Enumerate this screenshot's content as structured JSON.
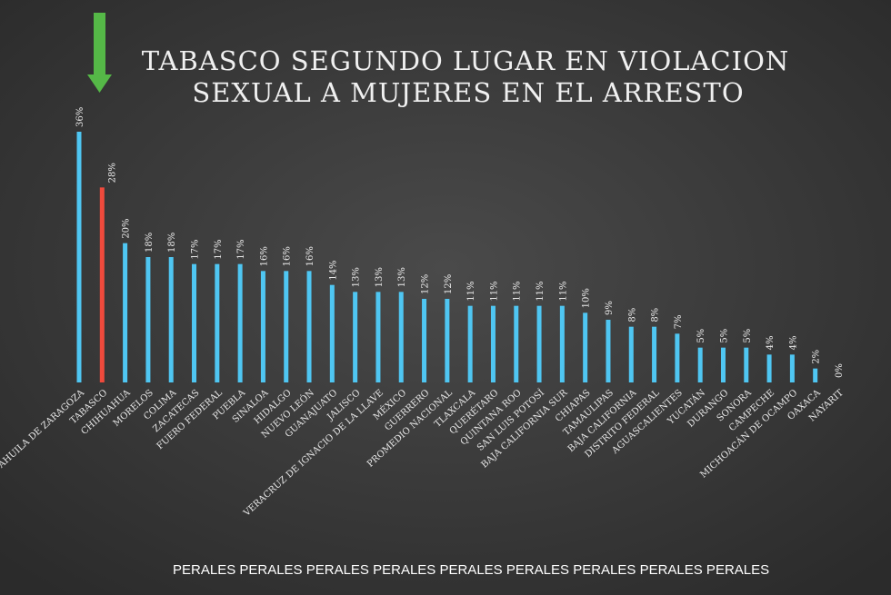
{
  "chart_data": {
    "type": "bar",
    "title": [
      "TABASCO SEGUNDO LUGAR EN VIOLACION",
      "SEXUAL A MUJERES EN EL ARRESTO"
    ],
    "categories": [
      "COAHUILA DE ZARAGOZA",
      "TABASCO",
      "CHIHUAHUA",
      "MORELOS",
      "COLIMA",
      "ZACATECAS",
      "FUERO FEDERAL",
      "PUEBLA",
      "SINALOA",
      "HIDALGO",
      "NUEVO LEÓN",
      "GUANAJUATO",
      "JALISCO",
      "VERACRUZ DE IGNACIO DE LA LLAVE",
      "MÉXICO",
      "GUERRERO",
      "PROMEDIO NACIONAL",
      "TLAXCALA",
      "QUERÉTARO",
      "QUINTANA ROO",
      "SAN LUIS POTOSÍ",
      "BAJA CALIFORNIA SUR",
      "CHIAPAS",
      "TAMAULIPAS",
      "BAJA CALIFORNIA",
      "DISTRITO FEDERAL",
      "AGUASCALIENTES",
      "YUCATÁN",
      "DURANGO",
      "SONORA",
      "CAMPECHE",
      "MICHOACÁN DE OCAMPO",
      "OAXACA",
      "NAYARIT"
    ],
    "values": [
      36,
      28,
      20,
      18,
      18,
      17,
      17,
      17,
      16,
      16,
      16,
      14,
      13,
      13,
      13,
      12,
      12,
      11,
      11,
      11,
      11,
      11,
      10,
      9,
      8,
      8,
      7,
      5,
      5,
      5,
      4,
      4,
      2,
      0
    ],
    "value_labels": [
      "36%",
      "28%",
      "20%",
      "18%",
      "18%",
      "17%",
      "17%",
      "17%",
      "16%",
      "16%",
      "16%",
      "14%",
      "13%",
      "13%",
      "13%",
      "12%",
      "12%",
      "11%",
      "11%",
      "11%",
      "11%",
      "11%",
      "10%",
      "9%",
      "8%",
      "8%",
      "7%",
      "5%",
      "5%",
      "5%",
      "4%",
      "4%",
      "2%",
      "0%"
    ],
    "color": "#4fc6f2",
    "highlight_index": 1,
    "highlight_color": "#ef4a3c",
    "watermark": "PERALES PERALES PERALES PERALES PERALES PERALES PERALES PERALES PERALES"
  }
}
